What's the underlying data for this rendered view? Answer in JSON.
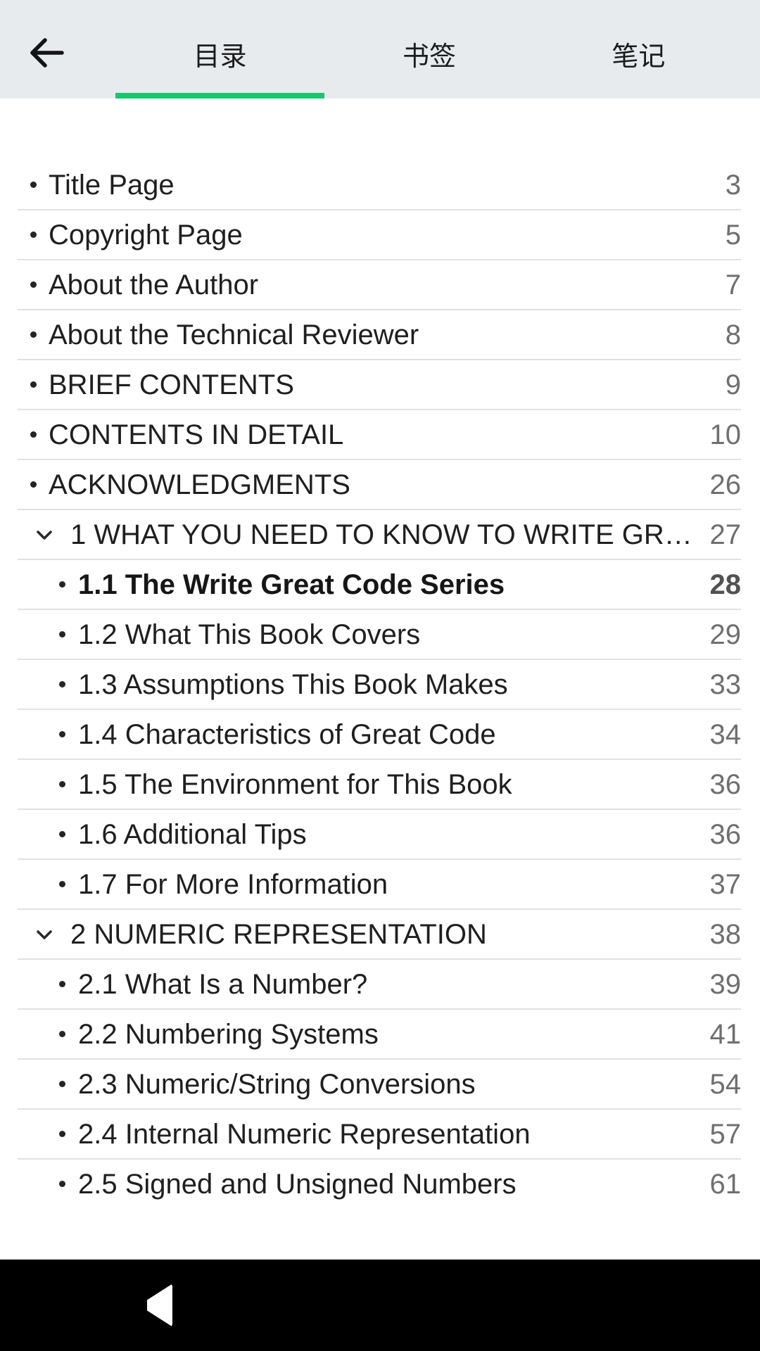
{
  "colors": {
    "header_bg": "#e8ebee",
    "accent_green": "#17c770",
    "divider": "#e2e2e2",
    "text": "#1f1f1f",
    "page_number": "#6f6f6f",
    "nav_bg": "#000000",
    "nav_icon": "#ffffff"
  },
  "header": {
    "back_icon": "arrow-left",
    "tabs": [
      {
        "label": "目录",
        "active": true
      },
      {
        "label": "书签",
        "active": false
      },
      {
        "label": "笔记",
        "active": false
      }
    ]
  },
  "toc": {
    "items": [
      {
        "level": "item",
        "title": "Title Page",
        "page": "3",
        "bold": false
      },
      {
        "level": "item",
        "title": "Copyright Page",
        "page": "5",
        "bold": false
      },
      {
        "level": "item",
        "title": "About the Author",
        "page": "7",
        "bold": false
      },
      {
        "level": "item",
        "title": "About the Technical Reviewer",
        "page": "8",
        "bold": false
      },
      {
        "level": "item",
        "title": "BRIEF CONTENTS",
        "page": "9",
        "bold": false
      },
      {
        "level": "item",
        "title": "CONTENTS IN DETAIL",
        "page": "10",
        "bold": false
      },
      {
        "level": "item",
        "title": "ACKNOWLEDGMENTS",
        "page": "26",
        "bold": false
      },
      {
        "level": "chapter",
        "title": "1 WHAT YOU NEED TO KNOW TO WRITE GR…",
        "page": "27",
        "bold": false
      },
      {
        "level": "sub",
        "title": "1.1 The Write Great Code Series",
        "page": "28",
        "bold": true
      },
      {
        "level": "sub",
        "title": "1.2 What This Book Covers",
        "page": "29",
        "bold": false
      },
      {
        "level": "sub",
        "title": "1.3 Assumptions This Book Makes",
        "page": "33",
        "bold": false
      },
      {
        "level": "sub",
        "title": "1.4 Characteristics of Great Code",
        "page": "34",
        "bold": false
      },
      {
        "level": "sub",
        "title": "1.5 The Environment for This Book",
        "page": "36",
        "bold": false
      },
      {
        "level": "sub",
        "title": "1.6 Additional Tips",
        "page": "36",
        "bold": false
      },
      {
        "level": "sub",
        "title": "1.7 For More Information",
        "page": "37",
        "bold": false
      },
      {
        "level": "chapter",
        "title": "2 NUMERIC REPRESENTATION",
        "page": "38",
        "bold": false
      },
      {
        "level": "sub",
        "title": "2.1 What Is a Number?",
        "page": "39",
        "bold": false
      },
      {
        "level": "sub",
        "title": "2.2 Numbering Systems",
        "page": "41",
        "bold": false
      },
      {
        "level": "sub",
        "title": "2.3 Numeric/String Conversions",
        "page": "54",
        "bold": false
      },
      {
        "level": "sub",
        "title": "2.4 Internal Numeric Representation",
        "page": "57",
        "bold": false
      },
      {
        "level": "sub",
        "title": "2.5 Signed and Unsigned Numbers",
        "page": "61",
        "bold": false
      }
    ]
  },
  "nav_bar": {
    "icons": [
      "back-triangle",
      "home-circle",
      "recents-square"
    ]
  }
}
